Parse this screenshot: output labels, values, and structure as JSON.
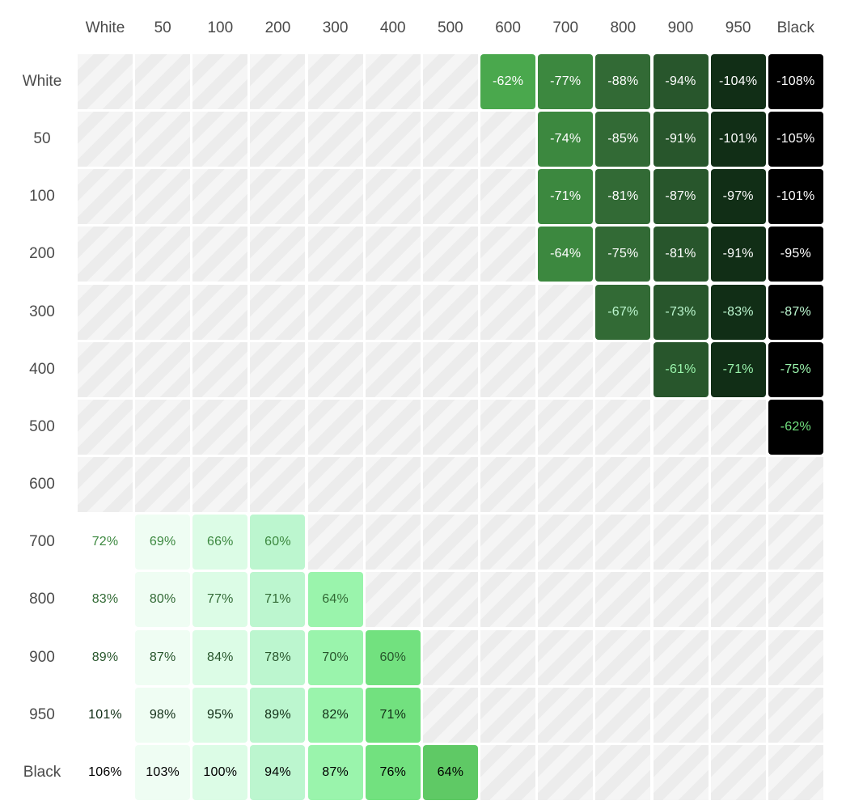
{
  "columns": [
    "White",
    "50",
    "100",
    "200",
    "300",
    "400",
    "500",
    "600",
    "700",
    "800",
    "900",
    "950",
    "Black"
  ],
  "rows": [
    "White",
    "50",
    "100",
    "200",
    "300",
    "400",
    "500",
    "600",
    "700",
    "800",
    "900",
    "950",
    "Black"
  ],
  "cells": [
    [
      null,
      null,
      null,
      null,
      null,
      null,
      null,
      "-62%",
      "-77%",
      "-88%",
      "-94%",
      "-104%",
      "-108%"
    ],
    [
      null,
      null,
      null,
      null,
      null,
      null,
      null,
      null,
      "-74%",
      "-85%",
      "-91%",
      "-101%",
      "-105%"
    ],
    [
      null,
      null,
      null,
      null,
      null,
      null,
      null,
      null,
      "-71%",
      "-81%",
      "-87%",
      "-97%",
      "-101%"
    ],
    [
      null,
      null,
      null,
      null,
      null,
      null,
      null,
      null,
      "-64%",
      "-75%",
      "-81%",
      "-91%",
      "-95%"
    ],
    [
      null,
      null,
      null,
      null,
      null,
      null,
      null,
      null,
      null,
      "-67%",
      "-73%",
      "-83%",
      "-87%"
    ],
    [
      null,
      null,
      null,
      null,
      null,
      null,
      null,
      null,
      null,
      null,
      "-61%",
      "-71%",
      "-75%"
    ],
    [
      null,
      null,
      null,
      null,
      null,
      null,
      null,
      null,
      null,
      null,
      null,
      null,
      "-62%"
    ],
    [
      null,
      null,
      null,
      null,
      null,
      null,
      null,
      null,
      null,
      null,
      null,
      null,
      null
    ],
    [
      "72%",
      "69%",
      "66%",
      "60%",
      null,
      null,
      null,
      null,
      null,
      null,
      null,
      null,
      null
    ],
    [
      "83%",
      "80%",
      "77%",
      "71%",
      "64%",
      null,
      null,
      null,
      null,
      null,
      null,
      null,
      null
    ],
    [
      "89%",
      "87%",
      "84%",
      "78%",
      "70%",
      "60%",
      null,
      null,
      null,
      null,
      null,
      null,
      null
    ],
    [
      "101%",
      "98%",
      "95%",
      "89%",
      "82%",
      "71%",
      null,
      null,
      null,
      null,
      null,
      null,
      null
    ],
    [
      "106%",
      "103%",
      "100%",
      "94%",
      "87%",
      "76%",
      "64%",
      null,
      null,
      null,
      null,
      null,
      null
    ]
  ],
  "colors": {
    "column_bg": {
      "White": "transparent",
      "50": "#effdf3",
      "100": "#dcfce6",
      "200": "#bcf6cf",
      "300": "#9af4ac",
      "400": "#72e17f",
      "500": "#5fc965",
      "600": "#4aa84d",
      "700": "#3c883f",
      "800": "#326a35",
      "900": "#28562c",
      "950": "#112e16",
      "Black": "#000000"
    },
    "row_text": {
      "White": "#ffffff",
      "50": "#ffffff",
      "100": "#ffffff",
      "200": "#ffffff",
      "300": "#bcf6cf",
      "400": "#9af4ac",
      "500": "#72e17f",
      "600": "#ffffff",
      "700": "#3c883f",
      "800": "#326a35",
      "900": "#28562c",
      "950": "#112e16",
      "Black": "#000000"
    }
  }
}
